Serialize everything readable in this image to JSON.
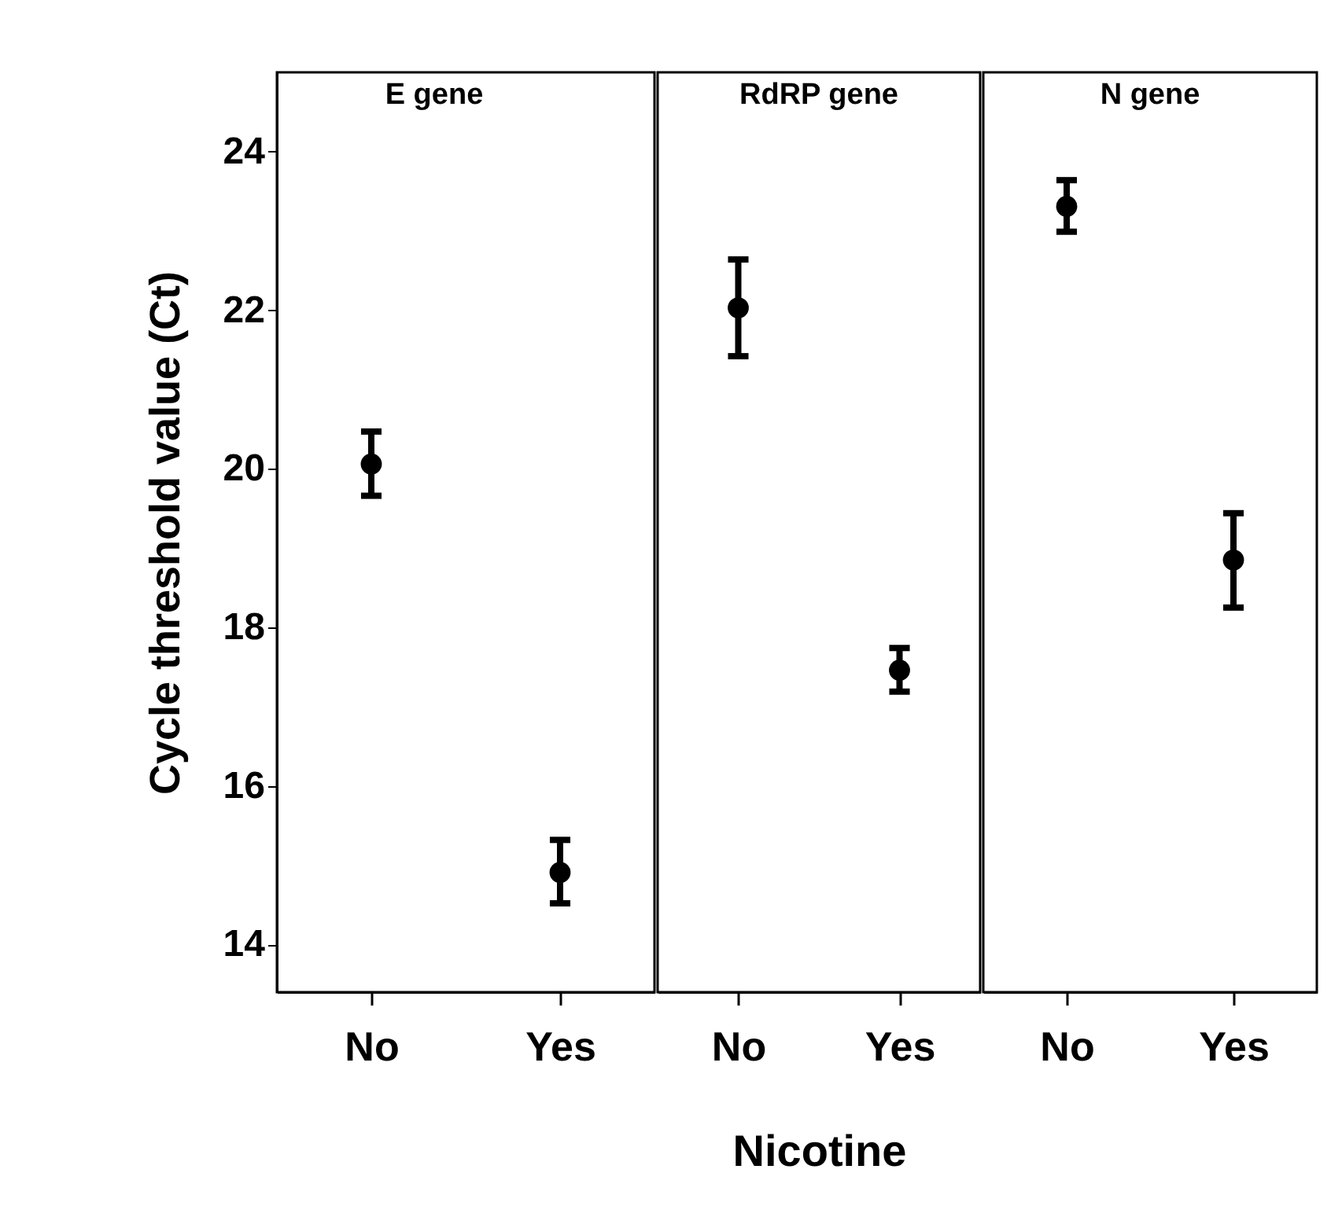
{
  "chart_data": [
    {
      "type": "scatter",
      "title": "E gene",
      "ylabel": "Cycle threshold value (Ct)",
      "categories": [
        "No",
        "Yes"
      ],
      "values": [
        20.06,
        14.91
      ],
      "errors": [
        [
          19.66,
          20.47
        ],
        [
          14.52,
          15.32
        ]
      ],
      "color": "#000000",
      "marker": "circle",
      "ylim": [
        13.4,
        25
      ],
      "yticks": [
        14,
        16,
        18,
        20,
        22,
        24
      ]
    },
    {
      "type": "scatter",
      "title": "RdRP gene",
      "xlabel": "Nicotine",
      "categories": [
        "No",
        "Yes"
      ],
      "values": [
        22.03,
        17.46
      ],
      "errors": [
        [
          21.42,
          22.64
        ],
        [
          17.19,
          17.74
        ]
      ],
      "color": "#000000",
      "marker": "circle",
      "ylim": [
        13.4,
        25
      ],
      "tick_labels": "x"
    },
    {
      "type": "scatter",
      "title": "N gene",
      "categories": [
        "No",
        "Yes"
      ],
      "values": [
        23.31,
        18.85
      ],
      "errors": [
        [
          22.99,
          23.64
        ],
        [
          18.25,
          19.44
        ]
      ],
      "color": "#000000",
      "marker": "circle",
      "ylim": [
        13.4,
        25
      ],
      "tick_labels": "x"
    }
  ]
}
